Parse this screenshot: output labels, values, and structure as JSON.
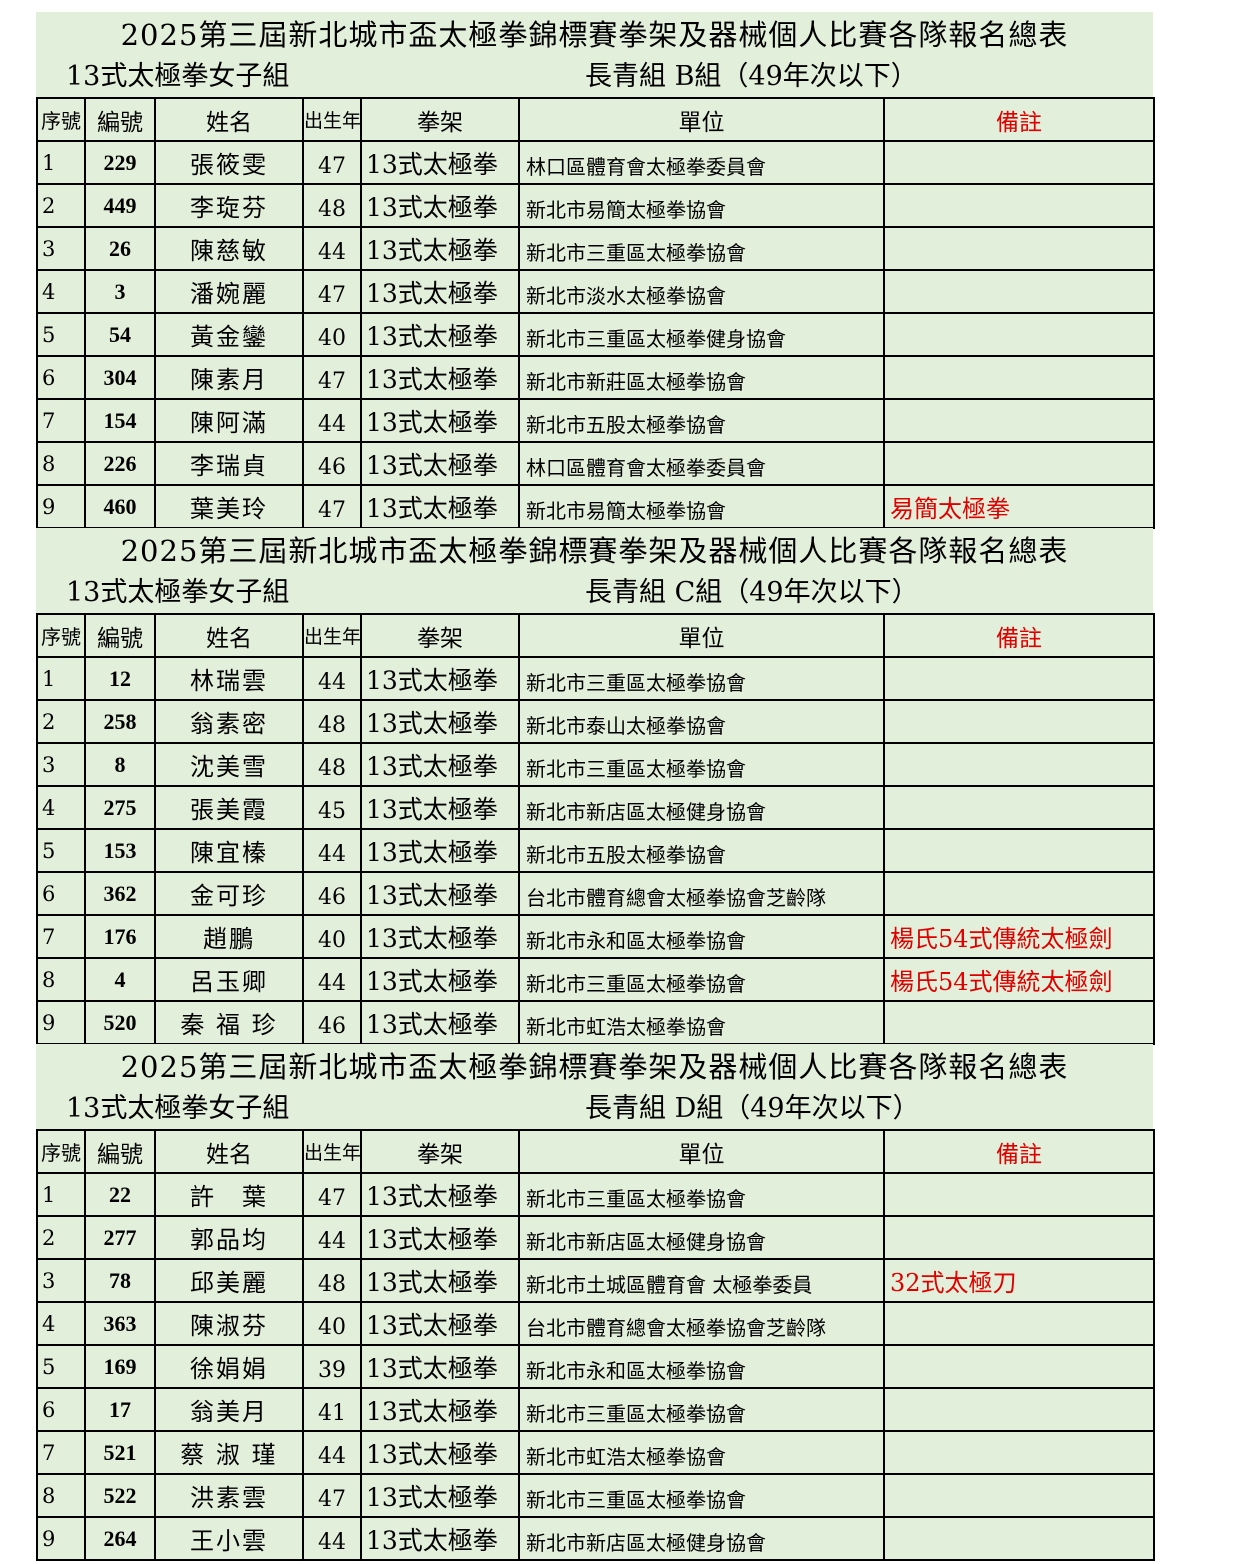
{
  "sections": [
    {
      "title": "2025第三屆新北城市盃太極拳錦標賽拳架及器械個人比賽各隊報名總表",
      "subtitle_left": "13式太極拳女子組",
      "subtitle_right": "長青組 B組（49年次以下）",
      "header": [
        "序號",
        "編號",
        "姓名",
        "出生年",
        "拳架",
        "單位",
        "備註"
      ],
      "rows": [
        [
          "1",
          "229",
          "張筱雯",
          "47",
          "13式太極拳",
          "林口區體育會太極拳委員會"
        ],
        [
          "2",
          "449",
          "李琁芬",
          "48",
          "13式太極拳",
          "新北市易簡太極拳協會"
        ],
        [
          "3",
          "26",
          "陳慈敏",
          "44",
          "13式太極拳",
          "新北市三重區太極拳協會"
        ],
        [
          "4",
          "3",
          "潘婉麗",
          "47",
          "13式太極拳",
          "新北市淡水太極拳協會"
        ],
        [
          "5",
          "54",
          "黃金鑾",
          "40",
          "13式太極拳",
          "新北市三重區太極拳健身協會"
        ],
        [
          "6",
          "304",
          "陳素月",
          "47",
          "13式太極拳",
          "新北市新莊區太極拳協會"
        ],
        [
          "7",
          "154",
          "陳阿滿",
          "44",
          "13式太極拳",
          "新北市五股太極拳協會"
        ],
        [
          "8",
          "226",
          "李瑞貞",
          "46",
          "13式太極拳",
          "林口區體育會太極拳委員會"
        ],
        [
          "9",
          "460",
          "葉美玲",
          "47",
          "13式太極拳",
          "新北市易簡太極拳協會",
          "易簡太極拳"
        ]
      ]
    },
    {
      "title": "2025第三屆新北城市盃太極拳錦標賽拳架及器械個人比賽各隊報名總表",
      "subtitle_left": "13式太極拳女子組",
      "subtitle_right": "長青組 C組（49年次以下）",
      "header": [
        "序號",
        "編號",
        "姓名",
        "出生年",
        "拳架",
        "單位",
        "備註"
      ],
      "rows": [
        [
          "1",
          "12",
          "林瑞雲",
          "44",
          "13式太極拳",
          "新北市三重區太極拳協會"
        ],
        [
          "2",
          "258",
          "翁素密",
          "48",
          "13式太極拳",
          "新北市泰山太極拳協會"
        ],
        [
          "3",
          "8",
          "沈美雪",
          "48",
          "13式太極拳",
          "新北市三重區太極拳協會"
        ],
        [
          "4",
          "275",
          "張美霞",
          "45",
          "13式太極拳",
          "新北市新店區太極健身協會"
        ],
        [
          "5",
          "153",
          "陳宜榛",
          "44",
          "13式太極拳",
          "新北市五股太極拳協會"
        ],
        [
          "6",
          "362",
          "金可珍",
          "46",
          "13式太極拳",
          "台北市體育總會太極拳協會芝齡隊"
        ],
        [
          "7",
          "176",
          "趙鵬",
          "40",
          "13式太極拳",
          "新北市永和區太極拳協會",
          "楊氏54式傳統太極劍"
        ],
        [
          "8",
          "4",
          "呂玉卿",
          "44",
          "13式太極拳",
          "新北市三重區太極拳協會",
          "楊氏54式傳統太極劍"
        ],
        [
          "9",
          "520",
          "秦 福 珍",
          "46",
          "13式太極拳",
          "新北市虹浩太極拳協會"
        ]
      ]
    },
    {
      "title": "2025第三屆新北城市盃太極拳錦標賽拳架及器械個人比賽各隊報名總表",
      "subtitle_left": "13式太極拳女子組",
      "subtitle_right": "長青組 D組（49年次以下）",
      "header": [
        "序號",
        "編號",
        "姓名",
        "出生年",
        "拳架",
        "單位",
        "備註"
      ],
      "rows": [
        [
          "1",
          "22",
          "許　葉",
          "47",
          "13式太極拳",
          "新北市三重區太極拳協會"
        ],
        [
          "2",
          "277",
          "郭品均",
          "44",
          "13式太極拳",
          "新北市新店區太極健身協會"
        ],
        [
          "3",
          "78",
          "邱美麗",
          "48",
          "13式太極拳",
          "新北市土城區體育會 太極拳委員",
          "32式太極刀"
        ],
        [
          "4",
          "363",
          "陳淑芬",
          "40",
          "13式太極拳",
          "台北市體育總會太極拳協會芝齡隊"
        ],
        [
          "5",
          "169",
          "徐娟娟",
          "39",
          "13式太極拳",
          "新北市永和區太極拳協會"
        ],
        [
          "6",
          "17",
          "翁美月",
          "41",
          "13式太極拳",
          "新北市三重區太極拳協會"
        ],
        [
          "7",
          "521",
          "蔡 淑 瑾",
          "44",
          "13式太極拳",
          "新北市虹浩太極拳協會"
        ],
        [
          "8",
          "522",
          "洪素雲",
          "47",
          "13式太極拳",
          "新北市三重區太極拳協會"
        ],
        [
          "9",
          "264",
          "王小雲",
          "44",
          "13式太極拳",
          "新北市新店區太極健身協會"
        ]
      ]
    }
  ]
}
